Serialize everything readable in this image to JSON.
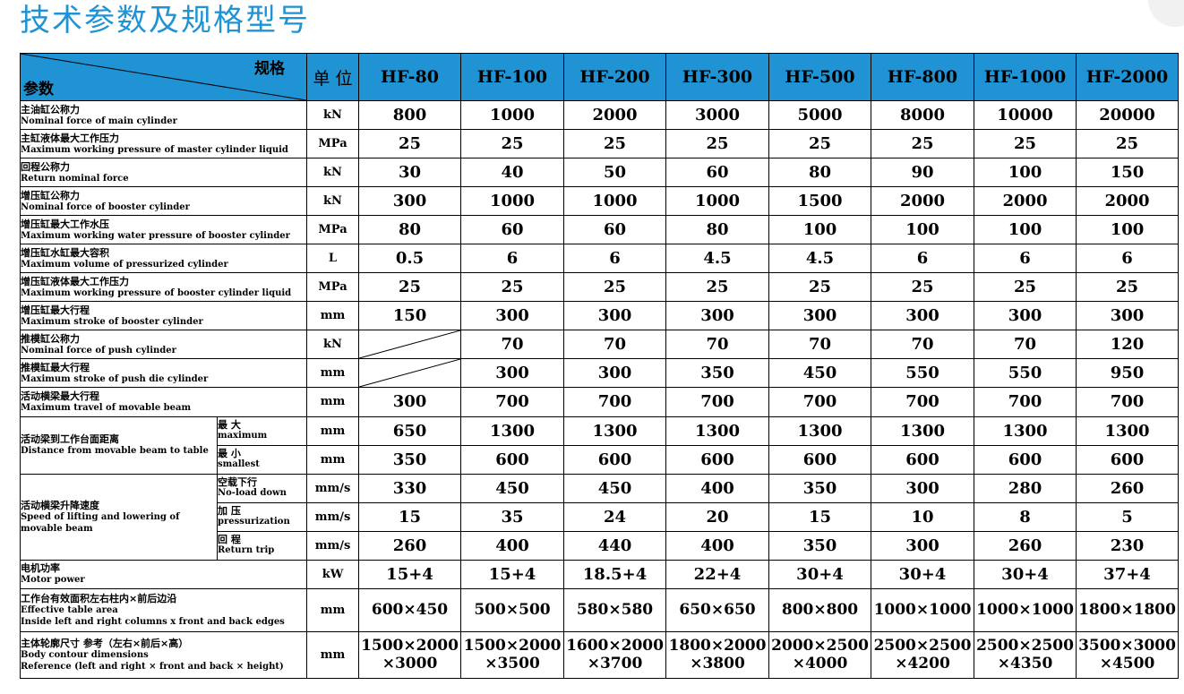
{
  "title": "技术参数及规格型号",
  "header": {
    "spec_label": "规格",
    "param_label": "参数",
    "unit_label": "单 位",
    "models": [
      "HF-80",
      "HF-100",
      "HF-200",
      "HF-300",
      "HF-500",
      "HF-800",
      "HF-1000",
      "HF-2000"
    ]
  },
  "rows": [
    {
      "zh": "主油缸公称力",
      "en": "Nominal force of main cylinder",
      "unit": "kN",
      "values": [
        "800",
        "1000",
        "2000",
        "3000",
        "5000",
        "8000",
        "10000",
        "20000"
      ]
    },
    {
      "zh": "主缸液体最大工作压力",
      "en": "Maximum working pressure of master cylinder liquid",
      "unit": "MPa",
      "values": [
        "25",
        "25",
        "25",
        "25",
        "25",
        "25",
        "25",
        "25"
      ]
    },
    {
      "zh": "回程公称力",
      "en": "Return nominal force",
      "unit": "kN",
      "values": [
        "30",
        "40",
        "50",
        "60",
        "80",
        "90",
        "100",
        "150"
      ]
    },
    {
      "zh": "增压缸公称力",
      "en": "Nominal force of booster cylinder",
      "unit": "kN",
      "values": [
        "300",
        "1000",
        "1000",
        "1000",
        "1500",
        "2000",
        "2000",
        "2000"
      ]
    },
    {
      "zh": "增压缸最大工作水压",
      "en": "Maximum working water pressure of booster cylinder",
      "unit": "MPa",
      "values": [
        "80",
        "60",
        "60",
        "80",
        "100",
        "100",
        "100",
        "100"
      ]
    },
    {
      "zh": "增压缸水缸最大容积",
      "en": "Maximum volume of pressurized cylinder",
      "unit": "L",
      "values": [
        "0.5",
        "6",
        "6",
        "4.5",
        "4.5",
        "6",
        "6",
        "6"
      ]
    },
    {
      "zh": "增压缸液体最大工作压力",
      "en": "Maximum working pressure of booster cylinder liquid",
      "unit": "MPa",
      "values": [
        "25",
        "25",
        "25",
        "25",
        "25",
        "25",
        "25",
        "25"
      ]
    },
    {
      "zh": "增压缸最大行程",
      "en": "Maximum stroke of booster cylinder",
      "unit": "mm",
      "values": [
        "150",
        "300",
        "300",
        "300",
        "300",
        "300",
        "300",
        "300"
      ]
    },
    {
      "zh": "推模缸公称力",
      "en": "Nominal force of push cylinder",
      "unit": "kN",
      "values": [
        "",
        "70",
        "70",
        "70",
        "70",
        "70",
        "70",
        "120"
      ]
    },
    {
      "zh": "推模缸最大行程",
      "en": "Maximum stroke of push die cylinder",
      "unit": "mm",
      "values": [
        "",
        "300",
        "300",
        "350",
        "450",
        "550",
        "550",
        "950"
      ]
    },
    {
      "zh": "活动横梁最大行程",
      "en": "Maximum travel of movable beam",
      "unit": "mm",
      "values": [
        "300",
        "700",
        "700",
        "700",
        "700",
        "700",
        "700",
        "700"
      ]
    }
  ],
  "distance_group": {
    "zh": "活动梁到工作台面距离",
    "en": "Distance from movable beam to table",
    "subs": [
      {
        "zh": "最 大",
        "en": "maximum",
        "unit": "mm",
        "values": [
          "650",
          "1300",
          "1300",
          "1300",
          "1300",
          "1300",
          "1300",
          "1300"
        ]
      },
      {
        "zh": "最 小",
        "en": "smallest",
        "unit": "mm",
        "values": [
          "350",
          "600",
          "600",
          "600",
          "600",
          "600",
          "600",
          "600"
        ]
      }
    ]
  },
  "speed_group": {
    "zh": "活动横梁升降速度",
    "en": "Speed of lifting and lowering of movable beam",
    "subs": [
      {
        "zh": "空载下行",
        "en": "No-load down",
        "unit": "mm/s",
        "values": [
          "330",
          "450",
          "450",
          "400",
          "350",
          "300",
          "280",
          "260"
        ]
      },
      {
        "zh": "加 压",
        "en": "pressurization",
        "unit": "mm/s",
        "values": [
          "15",
          "35",
          "24",
          "20",
          "15",
          "10",
          "8",
          "5"
        ]
      },
      {
        "zh": "回 程",
        "en": "Return trip",
        "unit": "mm/s",
        "values": [
          "260",
          "400",
          "440",
          "400",
          "350",
          "300",
          "260",
          "230"
        ]
      }
    ]
  },
  "motor": {
    "zh": "电机功率",
    "en": "Motor power",
    "unit": "kW",
    "values": [
      "15+4",
      "15+4",
      "18.5+4",
      "22+4",
      "30+4",
      "30+4",
      "30+4",
      "37+4"
    ]
  },
  "table_area": {
    "zh": "工作台有效面积左右柱内×前后边沿",
    "en1": "Effective table area",
    "en2": "Inside left and right columns x front and back edges",
    "unit": "mm",
    "values": [
      "600×450",
      "500×500",
      "580×580",
      "650×650",
      "800×800",
      "1000×1000",
      "1000×1000",
      "1800×1800"
    ]
  },
  "body_dims": {
    "zh": "主体轮廓尺寸 参考（左右×前后×高）",
    "en1": "Body contour dimensions",
    "en2": "Reference (left and right × front and back × height)",
    "unit": "mm",
    "line1": [
      "1500×2000",
      "1500×2000",
      "1600×2000",
      "1800×2000",
      "2000×2500",
      "2500×2500",
      "2500×2500",
      "3500×3000"
    ],
    "line2": [
      "×3000",
      "×3500",
      "×3700",
      "×3800",
      "×4000",
      "×4200",
      "×4350",
      "×4500"
    ]
  }
}
